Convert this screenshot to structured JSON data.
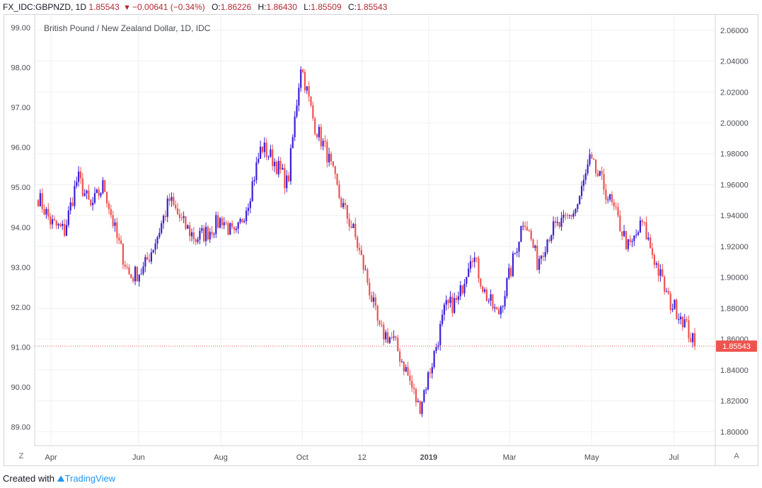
{
  "header": {
    "symbol": "FX_IDC:GBPNZD, 1D",
    "last": "1.85543",
    "change": "−0.00641 (−0.34%)",
    "open_label": "O:",
    "open": "1.86226",
    "high_label": "H:",
    "high": "1.86430",
    "low_label": "L:",
    "low": "1.85509",
    "close_label": "C:",
    "close": "1.85543"
  },
  "subtitle": "British Pound / New Zealand Dollar, 1D, IDC",
  "footer": {
    "created_with": "Created with",
    "brand": "TradingView"
  },
  "buttons": {
    "z": "Z",
    "a": "A"
  },
  "colors": {
    "up": "#3b1fd6",
    "down": "#ef5350",
    "grid": "#eef0f4",
    "price_line": "#ef5350"
  },
  "chart_data": {
    "type": "candlestick",
    "title": "British Pound / New Zealand Dollar, 1D, IDC",
    "left_axis": {
      "ticks": [
        "99.00",
        "98.00",
        "97.00",
        "96.00",
        "95.00",
        "94.00",
        "93.00",
        "92.00",
        "91.00",
        "90.00",
        "89.00"
      ],
      "range": [
        88.55,
        99.3
      ]
    },
    "right_axis": {
      "ticks": [
        "2.06000",
        "2.04000",
        "2.02000",
        "2.00000",
        "1.98000",
        "1.96000",
        "1.94000",
        "1.92000",
        "1.90000",
        "1.88000",
        "1.86000",
        "1.84000",
        "1.82000",
        "1.80000"
      ],
      "range": [
        1.7915,
        2.0695
      ]
    },
    "x_ticks": [
      "Apr",
      "Jun",
      "Aug",
      "Oct",
      "12",
      "2019",
      "Mar",
      "May",
      "Jul"
    ],
    "last_price": "1.85543",
    "last_price_value": 1.85543,
    "grid": true,
    "series_close_anchors": [
      [
        "Apr 2018",
        1.952
      ],
      [
        "Apr 2018",
        1.935
      ],
      [
        "Apr 2018",
        1.93
      ],
      [
        "May 2018",
        1.965
      ],
      [
        "May 2018",
        1.945
      ],
      [
        "May 2018",
        1.96
      ],
      [
        "Jun 2018",
        1.925
      ],
      [
        "Jun 2018",
        1.9
      ],
      [
        "Jun 2018",
        1.905
      ],
      [
        "Jul 2018",
        1.925
      ],
      [
        "Jul 2018",
        1.95
      ],
      [
        "Jul 2018",
        1.935
      ],
      [
        "Aug 2018",
        1.925
      ],
      [
        "Aug 2018",
        1.93
      ],
      [
        "Aug 2018",
        1.938
      ],
      [
        "Sep 2018",
        1.925
      ],
      [
        "Sep 2018",
        1.95
      ],
      [
        "Sep 2018",
        1.985
      ],
      [
        "Sep 2018",
        1.975
      ],
      [
        "Oct 2018",
        1.96
      ],
      [
        "Oct 2018",
        2.038
      ],
      [
        "Oct 2018",
        2.0
      ],
      [
        "Oct 2018",
        1.98
      ],
      [
        "Nov 2018",
        1.95
      ],
      [
        "Nov 2018",
        1.93
      ],
      [
        "Nov 2018",
        1.9
      ],
      [
        "Dec 2018",
        1.865
      ],
      [
        "Dec 2018",
        1.86
      ],
      [
        "Dec 2018",
        1.84
      ],
      [
        "Dec 2018",
        1.815
      ],
      [
        "Jan 2019",
        1.845
      ],
      [
        "Jan 2019",
        1.88
      ],
      [
        "Jan 2019",
        1.885
      ],
      [
        "Feb 2019",
        1.918
      ],
      [
        "Feb 2019",
        1.89
      ],
      [
        "Feb 2019",
        1.875
      ],
      [
        "Mar 2019",
        1.905
      ],
      [
        "Mar 2019",
        1.94
      ],
      [
        "Mar 2019",
        1.91
      ],
      [
        "Apr 2019",
        1.93
      ],
      [
        "Apr 2019",
        1.935
      ],
      [
        "Apr 2019",
        1.945
      ],
      [
        "May 2019",
        1.975
      ],
      [
        "May 2019",
        1.96
      ],
      [
        "May 2019",
        1.94
      ],
      [
        "Jun 2019",
        1.918
      ],
      [
        "Jun 2019",
        1.935
      ],
      [
        "Jun 2019",
        1.91
      ],
      [
        "Jul 2019",
        1.885
      ],
      [
        "Jul 2019",
        1.875
      ],
      [
        "Jul 2019",
        1.8554
      ]
    ]
  }
}
